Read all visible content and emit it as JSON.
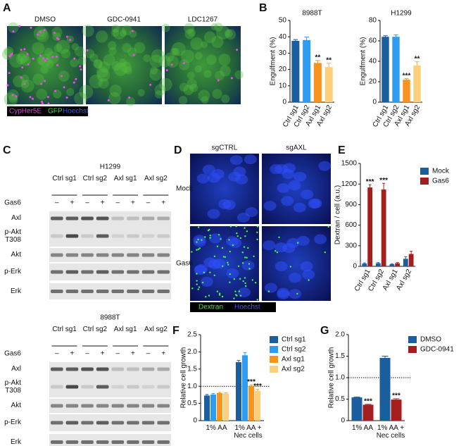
{
  "panel_labels": [
    "A",
    "B",
    "C",
    "D",
    "E",
    "F",
    "G"
  ],
  "panel_a": {
    "conditions": [
      "DMSO",
      "GDC-0941",
      "LDC1267"
    ],
    "stains": [
      "CypHer5E",
      "GFP",
      "Hoechst"
    ]
  },
  "panel_c": {
    "blots": [
      {
        "cell_line": "H1299"
      },
      {
        "cell_line": "8988T"
      }
    ],
    "columns": [
      "Ctrl sg1",
      "Ctrl sg2",
      "Axl sg1",
      "Axl sg2"
    ],
    "treatment": "Gas6",
    "signs": [
      "–",
      "+"
    ],
    "rows": [
      "Axl",
      "p-Akt T308",
      "Akt",
      "p-Erk",
      "Erk"
    ]
  },
  "panel_d": {
    "columns": [
      "sgCTRL",
      "sgAXL"
    ],
    "rows": [
      "Mock",
      "Gas6"
    ],
    "stains": [
      "Dextran",
      "Hoechst"
    ]
  },
  "chart_data": [
    {
      "type": "bar",
      "title": "8988T",
      "y_label": "Engulfment (%)",
      "categories": [
        "Ctrl sg1",
        "Ctrl sg2",
        "Axl sg1",
        "Axl sg2"
      ],
      "values": [
        37.5,
        38,
        24,
        21.5
      ],
      "errors": [
        0.8,
        1.8,
        1.5,
        2.3
      ],
      "colors": [
        "#1b5e9e",
        "#2e9cf0",
        "#f7931e",
        "#fcd07a"
      ],
      "significance": [
        null,
        null,
        "**",
        "**"
      ],
      "ylim": [
        0,
        50
      ],
      "yticks": [
        0,
        10,
        20,
        30,
        40,
        50
      ]
    },
    {
      "type": "bar",
      "title": "H1299",
      "y_label": "Engulfment (%)",
      "categories": [
        "Ctrl sg1",
        "Ctrl sg2",
        "Axl sg1",
        "Axl sg2"
      ],
      "values": [
        64,
        64,
        22,
        36
      ],
      "errors": [
        1,
        1.8,
        1,
        3.5
      ],
      "colors": [
        "#1b5e9e",
        "#2e9cf0",
        "#f7931e",
        "#fcd07a"
      ],
      "significance": [
        null,
        null,
        "***",
        "**"
      ],
      "ylim": [
        0,
        80
      ],
      "yticks": [
        0,
        20,
        40,
        60,
        80
      ]
    },
    {
      "type": "bar",
      "y_label": "Dextran / cell (a.u.)",
      "categories": [
        "Ctrl sg1",
        "Ctrl sg2",
        "Axl sg1",
        "Axl sg2"
      ],
      "series": [
        {
          "name": "Mock",
          "color": "#1b5e9e",
          "values": [
            40,
            45,
            30,
            110
          ],
          "errors": [
            10,
            10,
            5,
            30
          ],
          "significance": [
            null,
            null,
            null,
            null
          ]
        },
        {
          "name": "Gas6",
          "color": "#a51e1e",
          "values": [
            1150,
            1120,
            45,
            180
          ],
          "errors": [
            40,
            90,
            10,
            40
          ],
          "significance": [
            "***",
            "***",
            null,
            null
          ]
        }
      ],
      "ylim": [
        0,
        1500
      ],
      "yticks": [
        0,
        300,
        600,
        900,
        1200,
        1500
      ]
    },
    {
      "type": "bar",
      "y_label": "Relative cell growth",
      "categories": [
        "1% AA",
        "1% AA + Nec cells"
      ],
      "series": [
        {
          "name": "Ctrl sg1",
          "color": "#1b5e9e",
          "values": [
            0.73,
            1.7
          ],
          "errors": [
            0.03,
            0.05
          ],
          "significance": [
            null,
            null
          ]
        },
        {
          "name": "Ctrl sg2",
          "color": "#2e9cf0",
          "values": [
            0.76,
            1.9
          ],
          "errors": [
            0.03,
            0.08
          ],
          "significance": [
            null,
            null
          ]
        },
        {
          "name": "Axl sg1",
          "color": "#f7931e",
          "values": [
            0.8,
            1.0
          ],
          "errors": [
            0.02,
            0.04
          ],
          "significance": [
            null,
            "***"
          ]
        },
        {
          "name": "Axl sg2",
          "color": "#fcd07a",
          "values": [
            0.79,
            0.87
          ],
          "errors": [
            0.02,
            0.04
          ],
          "significance": [
            null,
            "***"
          ]
        }
      ],
      "hline": 1,
      "ylim": [
        0,
        2.5
      ],
      "yticks": [
        0,
        0.5,
        {
          "value": 1,
          "label": "1.0"
        },
        1.5,
        {
          "value": 2,
          "label": "2.0"
        },
        2.5
      ]
    },
    {
      "type": "bar",
      "y_label": "Relative cell growth",
      "categories": [
        "1% AA",
        "1% AA + Nec cells"
      ],
      "series": [
        {
          "name": "DMSO",
          "color": "#1b5e9e",
          "values": [
            0.54,
            1.46
          ],
          "errors": [
            0.01,
            0.04
          ],
          "significance": [
            null,
            null
          ]
        },
        {
          "name": "GDC-0941",
          "color": "#a51e1e",
          "values": [
            0.37,
            0.49
          ],
          "errors": [
            0.01,
            0.02
          ],
          "significance": [
            "***",
            "***"
          ]
        }
      ],
      "hline": 1,
      "ylim": [
        0,
        2
      ],
      "yticks": [
        0,
        0.5,
        {
          "value": 1,
          "label": "1.0"
        },
        1.5,
        {
          "value": 2,
          "label": "2.0"
        }
      ]
    }
  ]
}
